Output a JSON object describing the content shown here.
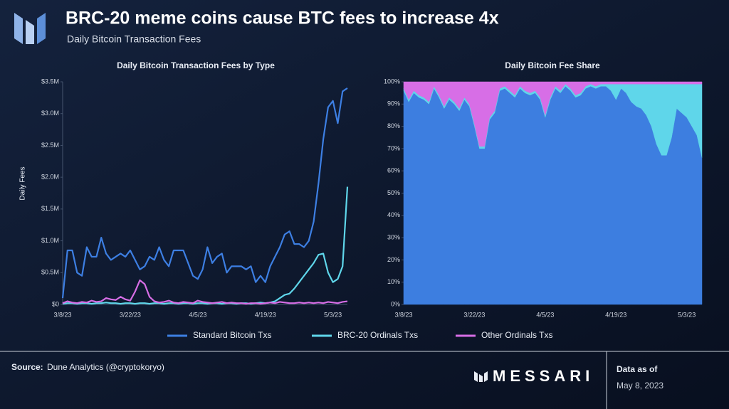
{
  "title": "BRC-20 meme coins cause BTC fees to increase 4x",
  "subtitle": "Daily Bitcoin Transaction Fees",
  "source_label": "Source:",
  "source": "Dune Analytics (@cryptokoryo)",
  "brand": "MESSARI",
  "data_as_of_label": "Data as of",
  "data_as_of": "May 8, 2023",
  "chart_data": [
    {
      "type": "line",
      "title": "Daily Bitcoin Transaction Fees by Type",
      "y_label": "Daily Fees",
      "categories": [
        "3/8/23",
        null,
        null,
        null,
        null,
        null,
        null,
        null,
        null,
        null,
        null,
        null,
        null,
        null,
        "3/22/23",
        null,
        null,
        null,
        null,
        null,
        null,
        null,
        null,
        null,
        null,
        null,
        null,
        null,
        "4/5/23",
        null,
        null,
        null,
        null,
        null,
        null,
        null,
        null,
        null,
        null,
        null,
        null,
        null,
        "4/19/23",
        null,
        null,
        null,
        null,
        null,
        null,
        null,
        null,
        null,
        null,
        null,
        null,
        null,
        "5/3/23",
        null,
        null,
        null
      ],
      "ylim": [
        0,
        3.5
      ],
      "yticks": [
        0,
        {
          "value": 0.5,
          "label": "$0.5M"
        },
        {
          "value": 1,
          "label": "$1.0M"
        },
        {
          "value": 1.5,
          "label": "$1.5M"
        },
        {
          "value": 2,
          "label": "$2.0M"
        },
        {
          "value": 2.5,
          "label": "$2.5M"
        },
        {
          "value": 3,
          "label": "$3.0M"
        },
        {
          "value": 3.5,
          "label": "$3.5M"
        }
      ],
      "ytick_zero_label": "$0",
      "grid": false,
      "series": [
        {
          "name": "Standard Bitcoin Txs",
          "color": "#3d7fe3",
          "values": [
            0.1,
            0.85,
            0.85,
            0.5,
            0.45,
            0.9,
            0.75,
            0.75,
            1.05,
            0.8,
            0.7,
            0.75,
            0.8,
            0.75,
            0.85,
            0.7,
            0.55,
            0.6,
            0.75,
            0.7,
            0.9,
            0.7,
            0.6,
            0.85,
            0.85,
            0.85,
            0.65,
            0.45,
            0.4,
            0.55,
            0.9,
            0.65,
            0.75,
            0.8,
            0.5,
            0.6,
            0.6,
            0.6,
            0.55,
            0.6,
            0.35,
            0.45,
            0.35,
            0.6,
            0.75,
            0.9,
            1.1,
            1.15,
            0.95,
            0.95,
            0.9,
            1.0,
            1.3,
            1.9,
            2.6,
            3.1,
            3.2,
            2.85,
            3.35,
            3.4
          ]
        },
        {
          "name": "BRC-20 Ordinals Txs",
          "color": "#5fd6ea",
          "values": [
            0.01,
            0.02,
            0.02,
            0.01,
            0.02,
            0.02,
            0.01,
            0.02,
            0.02,
            0.03,
            0.02,
            0.02,
            0.01,
            0.02,
            0.02,
            0.01,
            0.02,
            0.02,
            0.01,
            0.02,
            0.02,
            0.01,
            0.02,
            0.02,
            0.01,
            0.02,
            0.02,
            0.01,
            0.02,
            0.02,
            0.01,
            0.02,
            0.02,
            0.01,
            0.02,
            0.02,
            0.01,
            0.02,
            0.02,
            0.01,
            0.02,
            0.03,
            0.02,
            0.03,
            0.05,
            0.1,
            0.15,
            0.17,
            0.25,
            0.35,
            0.45,
            0.55,
            0.65,
            0.78,
            0.8,
            0.5,
            0.35,
            0.4,
            0.6,
            1.85
          ]
        },
        {
          "name": "Other Ordinals Txs",
          "color": "#d76ee6",
          "values": [
            0.02,
            0.05,
            0.03,
            0.02,
            0.04,
            0.03,
            0.06,
            0.04,
            0.05,
            0.1,
            0.08,
            0.07,
            0.12,
            0.08,
            0.06,
            0.2,
            0.38,
            0.32,
            0.12,
            0.05,
            0.03,
            0.04,
            0.06,
            0.03,
            0.02,
            0.04,
            0.03,
            0.02,
            0.06,
            0.04,
            0.03,
            0.02,
            0.03,
            0.04,
            0.02,
            0.03,
            0.02,
            0.02,
            0.01,
            0.02,
            0.02,
            0.01,
            0.02,
            0.03,
            0.02,
            0.04,
            0.03,
            0.02,
            0.02,
            0.03,
            0.02,
            0.03,
            0.02,
            0.03,
            0.02,
            0.04,
            0.03,
            0.02,
            0.04,
            0.05
          ]
        }
      ]
    },
    {
      "type": "stacked_area",
      "title": "Daily Bitcoin Fee Share",
      "categories": [
        "3/8/23",
        null,
        null,
        null,
        null,
        null,
        null,
        null,
        null,
        null,
        null,
        null,
        null,
        null,
        "3/22/23",
        null,
        null,
        null,
        null,
        null,
        null,
        null,
        null,
        null,
        null,
        null,
        null,
        null,
        "4/5/23",
        null,
        null,
        null,
        null,
        null,
        null,
        null,
        null,
        null,
        null,
        null,
        null,
        null,
        "4/19/23",
        null,
        null,
        null,
        null,
        null,
        null,
        null,
        null,
        null,
        null,
        null,
        null,
        null,
        "5/3/23",
        null,
        null,
        null
      ],
      "ylim": [
        0,
        100
      ],
      "yticks": [
        {
          "value": 0,
          "label": "0%"
        },
        {
          "value": 10,
          "label": "10%"
        },
        {
          "value": 20,
          "label": "20%"
        },
        {
          "value": 30,
          "label": "30%"
        },
        {
          "value": 40,
          "label": "40%"
        },
        {
          "value": 50,
          "label": "50%"
        },
        {
          "value": 60,
          "label": "60%"
        },
        {
          "value": 70,
          "label": "70%"
        },
        {
          "value": 80,
          "label": "80%"
        },
        {
          "value": 90,
          "label": "90%"
        },
        {
          "value": 100,
          "label": "100%"
        }
      ],
      "grid": false,
      "series": [
        {
          "color": "#3d7ee0",
          "values": [
            96,
            91,
            95,
            93,
            92,
            90,
            97,
            93,
            88,
            92,
            90,
            87,
            92,
            89,
            80,
            70,
            70,
            83,
            86,
            96,
            97,
            95,
            93,
            97,
            95,
            94,
            95,
            92,
            84,
            92,
            97,
            95,
            98,
            96,
            93,
            94,
            97,
            98,
            97,
            98,
            98,
            96,
            92,
            97,
            95,
            91,
            89,
            88,
            85,
            80,
            72,
            67,
            67,
            75,
            88,
            86,
            84,
            80,
            76,
            66
          ]
        },
        {
          "color": "#5fd6ea",
          "values": [
            1,
            1,
            1,
            1,
            1,
            1,
            1,
            1,
            1,
            1,
            1,
            1,
            1,
            1,
            1,
            1,
            1,
            1,
            1,
            1,
            1,
            1,
            1,
            1,
            1,
            1,
            1,
            1,
            1,
            1,
            1,
            1,
            1,
            1,
            1,
            1,
            1,
            1,
            1,
            1,
            1,
            3,
            7,
            2,
            4,
            8,
            10,
            11,
            14,
            19,
            27,
            32,
            32,
            24,
            11,
            13,
            15,
            19,
            23,
            33
          ]
        },
        {
          "color": "#d76ee6",
          "values": [
            3,
            8,
            4,
            6,
            7,
            9,
            2,
            6,
            11,
            7,
            9,
            12,
            7,
            10,
            19,
            29,
            29,
            16,
            13,
            3,
            2,
            4,
            6,
            2,
            4,
            5,
            4,
            7,
            15,
            7,
            2,
            4,
            1,
            3,
            6,
            5,
            2,
            1,
            2,
            1,
            1,
            1,
            1,
            1,
            1,
            1,
            1,
            1,
            1,
            1,
            1,
            1,
            1,
            1,
            1,
            1,
            1,
            1,
            1,
            1
          ]
        }
      ]
    }
  ]
}
